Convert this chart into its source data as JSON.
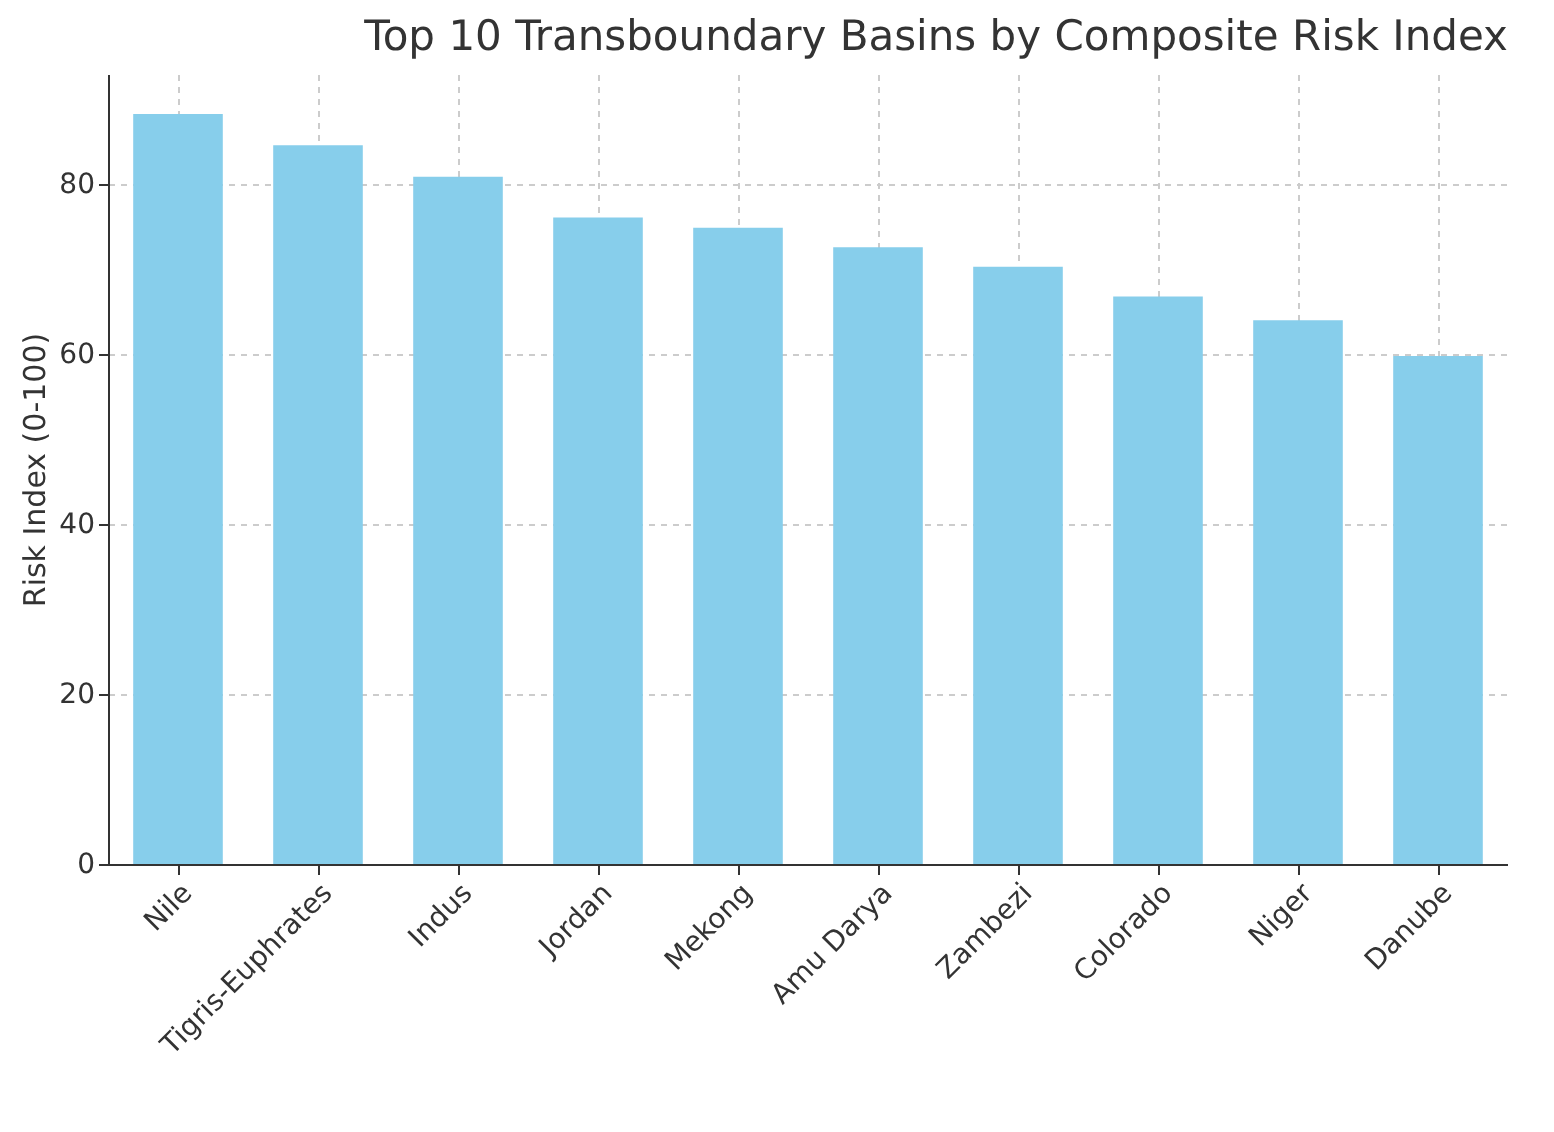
{
  "chart_data": {
    "type": "bar",
    "title": "Top 10 Transboundary Basins by Composite Risk Index",
    "ylabel": "Risk Index (0-100)",
    "categories": [
      "Nile",
      "Tigris-Euphrates",
      "Indus",
      "Jordan",
      "Mekong",
      "Amu Darya",
      "Zambezi",
      "Colorado",
      "Niger",
      "Danube"
    ],
    "values": [
      88.3,
      84.6,
      80.9,
      76.1,
      74.9,
      72.6,
      70.3,
      66.8,
      64.0,
      59.8
    ],
    "color": "#87ceeb",
    "ylim": [
      0,
      93
    ],
    "yticks": [
      0,
      20,
      40,
      60,
      80
    ],
    "grid": true
  }
}
